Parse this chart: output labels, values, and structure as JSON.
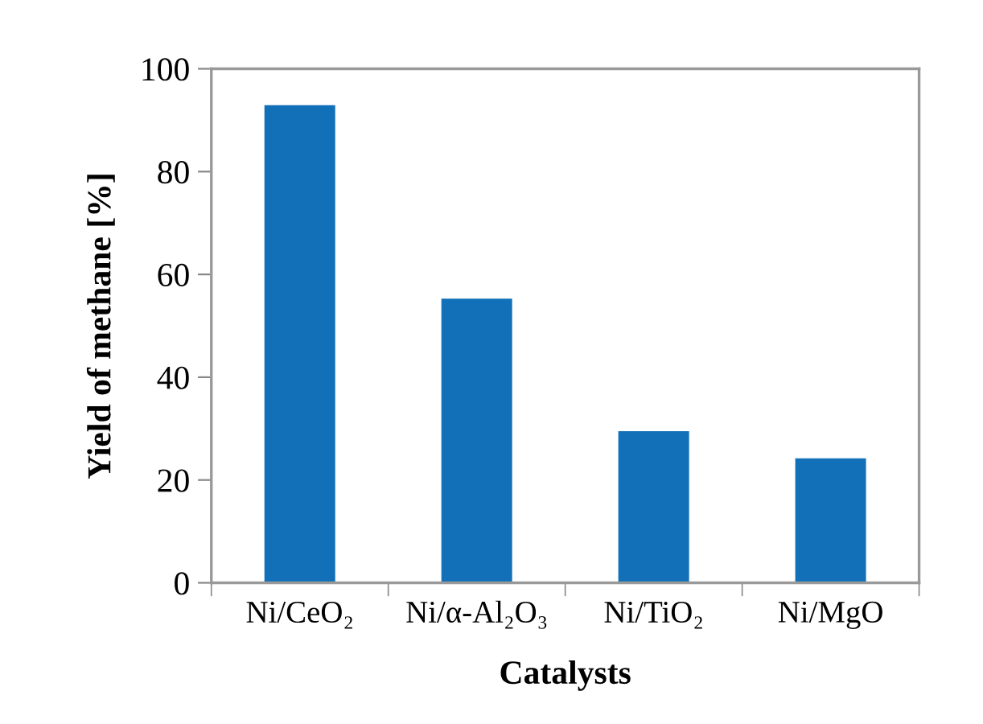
{
  "chart_data": {
    "type": "bar",
    "xlabel": "Catalysts",
    "ylabel": "Yield of methane [%]",
    "categories": [
      "Ni/CeO₂",
      "Ni/α-Al₂O₃",
      "Ni/TiO₂",
      "Ni/MgO"
    ],
    "values": [
      92.9,
      55.3,
      29.5,
      24.2
    ],
    "color": "#1170b8",
    "ylim": [
      0,
      100
    ],
    "yticks": [
      0,
      20,
      40,
      60,
      80,
      100
    ],
    "grid": false
  }
}
